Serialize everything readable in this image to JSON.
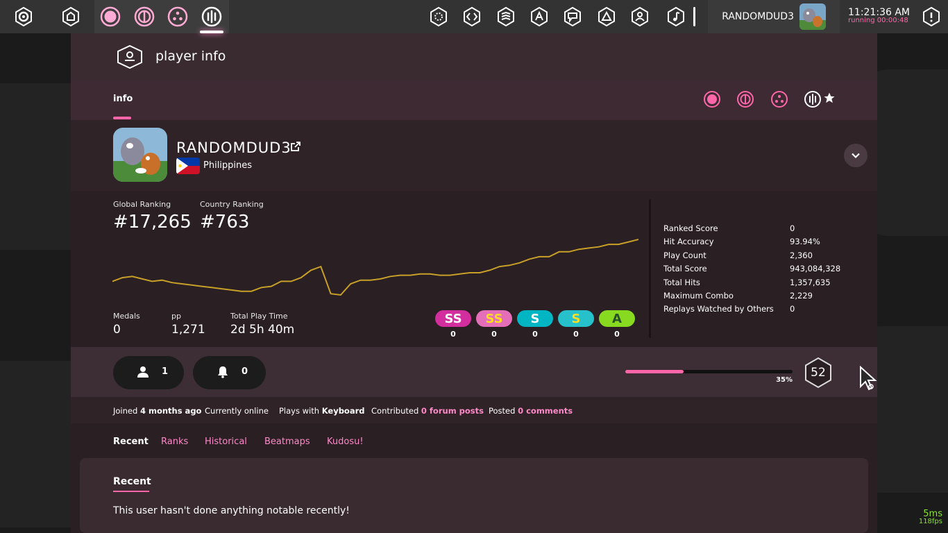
{
  "toolbar": {
    "username": "RANDOMDUD3",
    "clock_time": "11:21:36 AM",
    "clock_running": "running 00:00:48",
    "icons": [
      "settings-icon",
      "home-icon",
      "osu-ruleset-icon",
      "taiko-ruleset-icon",
      "catch-ruleset-icon",
      "mania-ruleset-icon",
      "beatmap-listing-icon",
      "changelog-icon",
      "rankings-icon",
      "wiki-icon",
      "chat-icon",
      "news-icon",
      "social-icon",
      "music-icon",
      "notifications-icon"
    ]
  },
  "header": {
    "title": "player info"
  },
  "tabs": {
    "info": "info"
  },
  "user": {
    "name": "RANDOMDUD3",
    "country": "Philippines"
  },
  "ranking": {
    "global_label": "Global Ranking",
    "global_value": "#17,265",
    "country_label": "Country Ranking",
    "country_value": "#763"
  },
  "chart_data": {
    "type": "line",
    "series": [
      {
        "values": [
          17900,
          17750,
          17700,
          17800,
          17900,
          17850,
          17950,
          18000,
          18050,
          18100,
          18150,
          18200,
          18250,
          18300,
          18300,
          18150,
          18100,
          17900,
          17900,
          17750,
          17450,
          17300,
          18400,
          18450,
          18000,
          17850,
          17850,
          17800,
          17700,
          17650,
          17650,
          17600,
          17600,
          17650,
          17650,
          17600,
          17550,
          17550,
          17450,
          17300,
          17250,
          17150,
          17000,
          16900,
          16900,
          16700,
          16700,
          16600,
          16550,
          16500,
          16400,
          16400,
          16300,
          16200
        ]
      }
    ],
    "colors": {
      "line": "#c8a028"
    }
  },
  "counts": {
    "medals_label": "Medals",
    "medals_value": "0",
    "pp_label": "pp",
    "pp_value": "1,271",
    "playtime_label": "Total Play Time",
    "playtime_value": "2d 5h 40m"
  },
  "grades": [
    {
      "label": "SS",
      "count": "0",
      "bg": "#d32e9d",
      "fg": "#ffffff"
    },
    {
      "label": "SS",
      "count": "0",
      "bg": "#e46fb8",
      "fg": "#ffde22"
    },
    {
      "label": "S",
      "count": "0",
      "bg": "#02b5c3",
      "fg": "#ffffff"
    },
    {
      "label": "S",
      "count": "0",
      "bg": "#27c1cb",
      "fg": "#ffde22"
    },
    {
      "label": "A",
      "count": "0",
      "bg": "#88da20",
      "fg": "#275227"
    }
  ],
  "stats": [
    {
      "label": "Ranked Score",
      "value": "0"
    },
    {
      "label": "Hit Accuracy",
      "value": "93.94%"
    },
    {
      "label": "Play Count",
      "value": "2,360"
    },
    {
      "label": "Total Score",
      "value": "943,084,328"
    },
    {
      "label": "Total Hits",
      "value": "1,357,635"
    },
    {
      "label": "Maximum Combo",
      "value": "2,229"
    },
    {
      "label": "Replays Watched by Others",
      "value": "0"
    }
  ],
  "social": {
    "followers": "1",
    "mapping_followers": "0"
  },
  "level": {
    "progress": 35,
    "progress_text": "35%",
    "value": "52"
  },
  "info_line": {
    "joined_prefix": "Joined",
    "joined_value": "4 months ago",
    "online": "Currently online",
    "plays_prefix": "Plays with",
    "plays_value": "Keyboard",
    "contributed_prefix": "Contributed",
    "contributed_value": "0 forum posts",
    "posted_prefix": "Posted",
    "posted_value": "0 comments"
  },
  "section_tabs": [
    "Recent",
    "Ranks",
    "Historical",
    "Beatmaps",
    "Kudosu!"
  ],
  "recent": {
    "title": "Recent",
    "empty_text": "This user hasn't done anything notable recently!"
  },
  "perf": {
    "ms": "5ms",
    "fps": "118fps"
  },
  "colors": {
    "accent": "#ff66aa",
    "panel": "#2a1f23",
    "toolbar": "#333333"
  }
}
